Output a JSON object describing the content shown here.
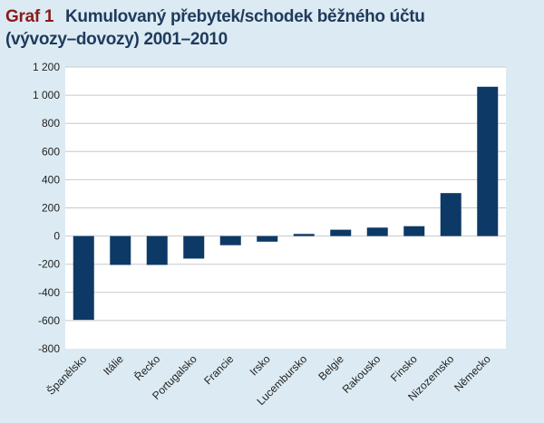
{
  "header": {
    "graf_label": "Graf 1",
    "title_line1": "Kumulovaný přebytek/schodek běžného účtu",
    "title_line2": "(vývozy–dovozy) 2001–2010"
  },
  "colors": {
    "background": "#dcebf3",
    "plot_background": "#ffffff",
    "bar": "#0d3966",
    "grid": "#c8c8c8",
    "graf_label": "#8b1a1a",
    "title": "#1f3a5c"
  },
  "chart_data": {
    "type": "bar",
    "title": "Kumulovaný přebytek/schodek běžného účtu (vývozy–dovozy) 2001–2010",
    "xlabel": "",
    "ylabel": "",
    "ylim": [
      -800,
      1200
    ],
    "yticks": [
      -800,
      -600,
      -400,
      -200,
      0,
      200,
      400,
      600,
      800,
      1000,
      1200
    ],
    "ytick_labels": [
      "-800",
      "-600",
      "-400",
      "-200",
      "0",
      "200",
      "400",
      "600",
      "800",
      "1 000",
      "1 200"
    ],
    "grid": true,
    "categories": [
      "Španělsko",
      "Itálie",
      "Řecko",
      "Portugalsko",
      "Francie",
      "Irsko",
      "Lucembursko",
      "Belgie",
      "Rakousko",
      "Finsko",
      "Nizozemsko",
      "Německo"
    ],
    "values": [
      -595,
      -205,
      -205,
      -160,
      -65,
      -40,
      15,
      45,
      60,
      70,
      305,
      1060
    ]
  }
}
